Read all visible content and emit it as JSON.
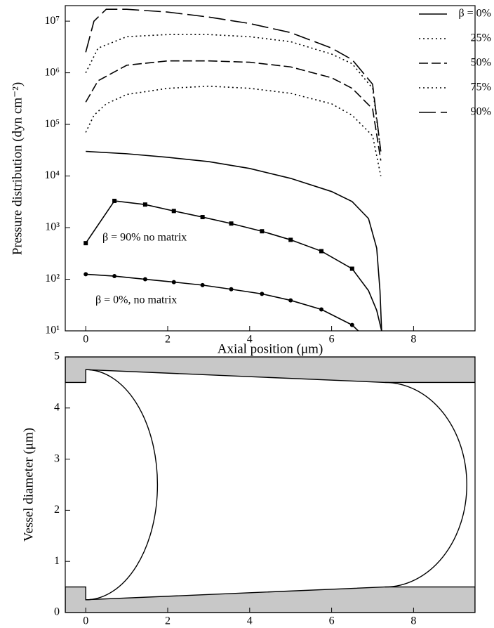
{
  "chart_data": [
    {
      "type": "line",
      "log_y": true,
      "y_label": "Pressure distribution (dyn cm⁻²)",
      "x_label": "Axial position (μm)",
      "xlim": [
        -0.5,
        9.5
      ],
      "xticks": [
        0,
        2,
        4,
        6,
        8
      ],
      "ylim": [
        10,
        20000000
      ],
      "yticks": [
        {
          "value": 10,
          "label": "10¹"
        },
        {
          "value": 100,
          "label": "10²"
        },
        {
          "value": 1000,
          "label": "10³"
        },
        {
          "value": 10000,
          "label": "10⁴"
        },
        {
          "value": 100000,
          "label": "10⁵"
        },
        {
          "value": 1000000,
          "label": "10⁶"
        },
        {
          "value": 10000000,
          "label": "10⁷"
        }
      ],
      "series": [
        {
          "name": "β = 0%",
          "color": "#000000",
          "dash": "solid",
          "x": [
            0,
            1,
            2,
            3,
            4,
            5,
            6,
            6.5,
            6.9,
            7.1,
            7.18,
            7.22
          ],
          "values": [
            30000,
            27000,
            23000,
            19000,
            14000,
            9000,
            5000,
            3200,
            1500,
            400,
            60,
            10
          ]
        },
        {
          "name": "25%",
          "color": "#000000",
          "dash": "dotted",
          "x": [
            0,
            0.2,
            0.5,
            1,
            2,
            3,
            4,
            5,
            6,
            6.5,
            7,
            7.2
          ],
          "values": [
            70000,
            150000,
            250000,
            380000,
            500000,
            550000,
            500000,
            400000,
            250000,
            150000,
            60000,
            10000
          ]
        },
        {
          "name": "50%",
          "color": "#000000",
          "dash": "dashed",
          "x": [
            0,
            0.3,
            1,
            2,
            3,
            4,
            5,
            6,
            6.5,
            7,
            7.2
          ],
          "values": [
            270000,
            700000,
            1400000,
            1700000,
            1700000,
            1600000,
            1300000,
            800000,
            500000,
            200000,
            20000
          ]
        },
        {
          "name": "75%",
          "color": "#000000",
          "dash": "dotted",
          "x": [
            0,
            0.3,
            1,
            2,
            3,
            4,
            5,
            6,
            6.5,
            7,
            7.2
          ],
          "values": [
            1000000,
            3000000,
            5000000,
            5500000,
            5500000,
            5000000,
            4000000,
            2300000,
            1500000,
            500000,
            30000
          ]
        },
        {
          "name": "90%",
          "color": "#000000",
          "dash": "longdash",
          "x": [
            0,
            0.2,
            0.5,
            1,
            2,
            3,
            4,
            5,
            6,
            6.5,
            7,
            7.2
          ],
          "values": [
            2500000,
            10000000,
            17000000,
            17000000,
            15000000,
            12000000,
            9000000,
            6000000,
            3000000,
            1800000,
            600000,
            30000
          ]
        },
        {
          "color": "#000000",
          "dash": "solid",
          "marker": "square",
          "x": [
            0,
            0.7,
            1.45,
            2.15,
            2.85,
            3.55,
            4.3,
            5,
            5.75,
            6.5
          ],
          "values": [
            500,
            3300,
            2800,
            2100,
            1600,
            1200,
            850,
            580,
            350,
            160
          ]
        },
        {
          "color": "#000000",
          "dash": "solid",
          "x": [
            6.5,
            6.9,
            7.1,
            7.22
          ],
          "values": [
            160,
            60,
            25,
            10
          ]
        },
        {
          "color": "#000000",
          "dash": "solid",
          "marker": "circle",
          "x": [
            0,
            0.7,
            1.45,
            2.15,
            2.85,
            3.55,
            4.3,
            5,
            5.75,
            6.5
          ],
          "values": [
            125,
            115,
            100,
            88,
            77,
            64,
            52,
            39,
            26,
            13
          ]
        },
        {
          "color": "#000000",
          "dash": "solid",
          "x": [
            6.5,
            6.65
          ],
          "values": [
            13,
            10
          ]
        }
      ],
      "annotations": [
        {
          "text": "β = 90% no matrix"
        },
        {
          "text": "β = 0%, no matrix"
        }
      ]
    },
    {
      "type": "vessel",
      "y_label": "Vessel diameter (μm)",
      "xlim": [
        -0.5,
        9.5
      ],
      "xticks": [
        0,
        2,
        4,
        6,
        8
      ],
      "ylim": [
        0,
        5
      ],
      "yticks": [
        0,
        1,
        2,
        3,
        4,
        5
      ],
      "wall_color": "#c8c8c8",
      "walls": [
        {
          "x": [
            -0.5,
            0,
            0,
            7.3,
            9.5
          ],
          "values": [
            4.5,
            4.5,
            4.75,
            4.5,
            4.5
          ]
        },
        {
          "x": [
            -0.5,
            0,
            0,
            7.3,
            9.5
          ],
          "values": [
            0.5,
            0.5,
            0.25,
            0.5,
            0.5
          ]
        }
      ],
      "cell": [
        {
          "x": [
            0,
            1.75,
            0
          ],
          "values": [
            4.75,
            2.5,
            0.25
          ]
        },
        {
          "x": [
            7.3,
            9.3,
            7.3
          ],
          "values": [
            4.5,
            2.5,
            0.5
          ]
        }
      ]
    }
  ]
}
